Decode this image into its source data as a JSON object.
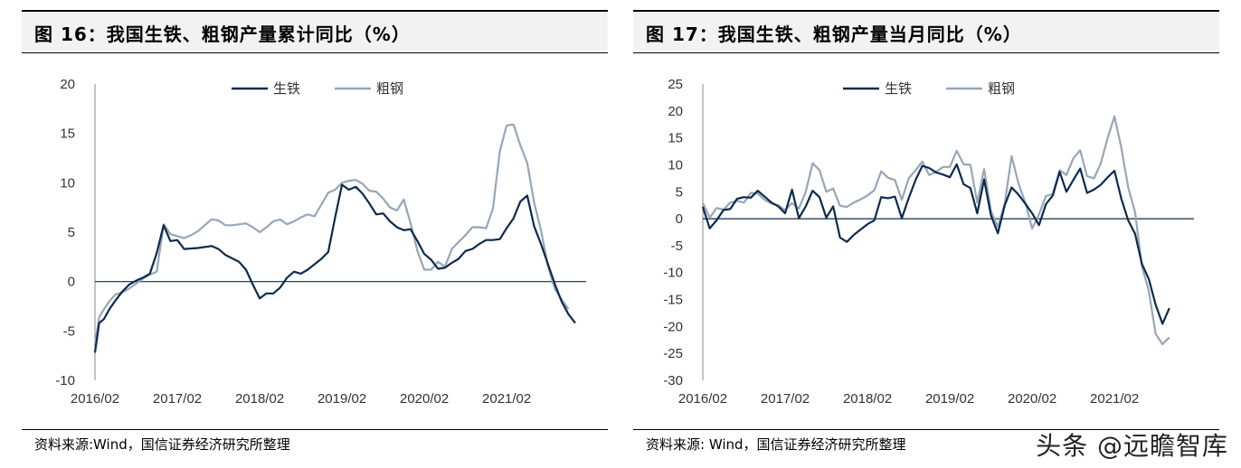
{
  "charts": [
    {
      "title": "图 16：我国生铁、粗钢产量累计同比（%）",
      "source": "资料来源:Wind，国信证券经济研究所整理"
    },
    {
      "title": "图 17：我国生铁、粗钢产量当月同比（%）",
      "source": "资料来源: Wind，国信证券经济研究所整理"
    }
  ],
  "watermark": "头条 @远瞻智库",
  "colors": {
    "pig_iron": "#0d2a4f",
    "crude_steel": "#97a6b8",
    "axis": "#0d2a4f"
  },
  "chart_data": [
    {
      "type": "line",
      "title": "图 16：我国生铁、粗钢产量累计同比（%）",
      "x_tick_labels": [
        "2016/02",
        "2017/02",
        "2018/02",
        "2019/02",
        "2020/02",
        "2021/02"
      ],
      "ylim": [
        -10,
        20
      ],
      "yticks": [
        -10,
        -5,
        0,
        5,
        10,
        15,
        20
      ],
      "legend": "top-center",
      "series": [
        {
          "name": "生铁",
          "points": [
            [
              0,
              -7.2
            ],
            [
              0.6,
              -4.2
            ],
            [
              1.3,
              -3.8
            ],
            [
              2.1,
              -2.8
            ],
            [
              3,
              -1.9
            ],
            [
              4,
              -1.0
            ],
            [
              5,
              -0.3
            ],
            [
              6,
              0.1
            ],
            [
              7,
              0.4
            ],
            [
              8,
              0.8
            ],
            [
              9,
              2.9
            ],
            [
              10,
              5.7
            ],
            [
              11,
              4.1
            ],
            [
              12,
              4.2
            ],
            [
              13,
              3.3
            ],
            [
              15,
              3.4
            ],
            [
              17,
              3.6
            ],
            [
              18,
              3.3
            ],
            [
              19,
              2.7
            ],
            [
              21,
              2.0
            ],
            [
              22,
              1.2
            ],
            [
              23,
              -0.3
            ],
            [
              24,
              -1.7
            ],
            [
              25,
              -1.2
            ],
            [
              26,
              -1.2
            ],
            [
              27,
              -0.6
            ],
            [
              28,
              0.4
            ],
            [
              29,
              1.0
            ],
            [
              30,
              0.8
            ],
            [
              31,
              1.2
            ],
            [
              33,
              2.3
            ],
            [
              34,
              3.0
            ],
            [
              35,
              6.5
            ],
            [
              36,
              9.8
            ],
            [
              37,
              9.3
            ],
            [
              38,
              9.6
            ],
            [
              39,
              8.9
            ],
            [
              40,
              7.9
            ],
            [
              41,
              6.8
            ],
            [
              42,
              6.9
            ],
            [
              43,
              6.1
            ],
            [
              44,
              5.5
            ],
            [
              45,
              5.2
            ],
            [
              46,
              5.3
            ],
            [
              47,
              4.1
            ],
            [
              48,
              2.8
            ],
            [
              49,
              2.2
            ],
            [
              50,
              1.3
            ],
            [
              51,
              1.4
            ],
            [
              52,
              1.9
            ],
            [
              53,
              2.3
            ],
            [
              54,
              3.1
            ],
            [
              55,
              3.3
            ],
            [
              56,
              3.8
            ],
            [
              57,
              4.2
            ],
            [
              58,
              4.2
            ],
            [
              59,
              4.3
            ],
            [
              60,
              5.4
            ],
            [
              61,
              6.4
            ],
            [
              62,
              8.1
            ],
            [
              63,
              8.7
            ],
            [
              64,
              5.6
            ],
            [
              65,
              3.8
            ],
            [
              66,
              1.8
            ],
            [
              67,
              -0.2
            ],
            [
              68,
              -2.0
            ],
            [
              69,
              -3.3
            ],
            [
              70,
              -4.2
            ]
          ]
        },
        {
          "name": "粗钢",
          "points": [
            [
              0,
              -6.5
            ],
            [
              0.6,
              -3.6
            ],
            [
              1.3,
              -2.8
            ],
            [
              2.1,
              -2.0
            ],
            [
              3,
              -1.3
            ],
            [
              4,
              -1.1
            ],
            [
              5,
              -0.7
            ],
            [
              6,
              -0.2
            ],
            [
              7,
              0.3
            ],
            [
              8,
              0.7
            ],
            [
              9,
              1.0
            ],
            [
              10,
              5.8
            ],
            [
              11,
              4.8
            ],
            [
              12,
              4.6
            ],
            [
              13,
              4.4
            ],
            [
              14,
              4.7
            ],
            [
              15,
              5.1
            ],
            [
              16,
              5.7
            ],
            [
              17,
              6.3
            ],
            [
              18,
              6.2
            ],
            [
              19,
              5.7
            ],
            [
              20,
              5.7
            ],
            [
              21,
              5.8
            ],
            [
              22,
              5.9
            ],
            [
              23,
              5.5
            ],
            [
              24,
              5.0
            ],
            [
              25,
              5.5
            ],
            [
              26,
              6.1
            ],
            [
              27,
              6.3
            ],
            [
              28,
              5.8
            ],
            [
              29,
              6.1
            ],
            [
              30,
              6.5
            ],
            [
              31,
              6.8
            ],
            [
              32,
              6.6
            ],
            [
              33,
              7.8
            ],
            [
              34,
              9.0
            ],
            [
              35,
              9.3
            ],
            [
              36,
              10.0
            ],
            [
              37,
              10.2
            ],
            [
              38,
              10.3
            ],
            [
              39,
              9.9
            ],
            [
              40,
              9.2
            ],
            [
              41,
              9.1
            ],
            [
              42,
              8.4
            ],
            [
              43,
              7.5
            ],
            [
              44,
              7.2
            ],
            [
              45,
              8.3
            ],
            [
              46,
              5.9
            ],
            [
              47,
              3.1
            ],
            [
              48,
              1.2
            ],
            [
              49,
              1.2
            ],
            [
              50,
              2.0
            ],
            [
              51,
              1.5
            ],
            [
              52,
              3.3
            ],
            [
              53,
              4.0
            ],
            [
              54,
              4.7
            ],
            [
              55,
              5.5
            ],
            [
              56,
              5.5
            ],
            [
              57,
              5.4
            ],
            [
              58,
              7.4
            ],
            [
              59,
              13.2
            ],
            [
              60,
              15.8
            ],
            [
              61,
              15.9
            ],
            [
              62,
              13.8
            ],
            [
              63,
              12.0
            ],
            [
              64,
              8.0
            ],
            [
              65,
              5.2
            ],
            [
              66,
              1.6
            ],
            [
              67,
              -0.7
            ],
            [
              68,
              -1.8
            ],
            [
              69,
              -2.8
            ]
          ]
        }
      ]
    },
    {
      "type": "line",
      "title": "图 17：我国生铁、粗钢产量当月同比（%）",
      "x_tick_labels": [
        "2016/02",
        "2017/02",
        "2018/02",
        "2019/02",
        "2020/02",
        "2021/02"
      ],
      "ylim": [
        -30,
        25
      ],
      "yticks": [
        -30,
        -25,
        -20,
        -15,
        -10,
        -5,
        0,
        5,
        10,
        15,
        20,
        25
      ],
      "legend": "top-center",
      "series": [
        {
          "name": "生铁",
          "points": [
            [
              0,
              2.2
            ],
            [
              1,
              -1.8
            ],
            [
              2,
              -0.3
            ],
            [
              3,
              1.6
            ],
            [
              4,
              1.8
            ],
            [
              5,
              3.7
            ],
            [
              6,
              4.0
            ],
            [
              7,
              3.9
            ],
            [
              8,
              5.2
            ],
            [
              9,
              4.1
            ],
            [
              10,
              3.0
            ],
            [
              11,
              2.3
            ],
            [
              12,
              1.0
            ],
            [
              13,
              5.4
            ],
            [
              14,
              0.1
            ],
            [
              15,
              2.3
            ],
            [
              16,
              5.2
            ],
            [
              17,
              4.0
            ],
            [
              18,
              0.2
            ],
            [
              19,
              2.3
            ],
            [
              20,
              -3.5
            ],
            [
              21,
              -4.3
            ],
            [
              22,
              -3.0
            ],
            [
              23,
              -2.0
            ],
            [
              24,
              -1.0
            ],
            [
              25,
              -0.3
            ],
            [
              26,
              4.0
            ],
            [
              27,
              3.8
            ],
            [
              28,
              4.1
            ],
            [
              29,
              0.1
            ],
            [
              30,
              3.8
            ],
            [
              31,
              7.2
            ],
            [
              32,
              9.8
            ],
            [
              33,
              9.4
            ],
            [
              34,
              8.6
            ],
            [
              35,
              8.2
            ],
            [
              36,
              7.7
            ],
            [
              37,
              10.1
            ],
            [
              38,
              6.4
            ],
            [
              39,
              5.7
            ],
            [
              40,
              1.0
            ],
            [
              41,
              7.3
            ],
            [
              42,
              0.6
            ],
            [
              43,
              -2.7
            ],
            [
              44,
              2.5
            ],
            [
              45,
              5.8
            ],
            [
              46,
              4.5
            ],
            [
              47,
              2.8
            ],
            [
              48,
              1.0
            ],
            [
              49,
              -1.2
            ],
            [
              50,
              2.7
            ],
            [
              51,
              4.3
            ],
            [
              52,
              8.7
            ],
            [
              53,
              5.0
            ],
            [
              54,
              7.2
            ],
            [
              55,
              9.3
            ],
            [
              56,
              4.8
            ],
            [
              57,
              5.4
            ],
            [
              58,
              6.3
            ],
            [
              59,
              7.7
            ],
            [
              60,
              8.9
            ],
            [
              61,
              3.7
            ],
            [
              62,
              -0.3
            ],
            [
              63,
              -2.8
            ],
            [
              64,
              -8.4
            ],
            [
              65,
              -11.2
            ],
            [
              66,
              -16.0
            ],
            [
              67,
              -19.5
            ],
            [
              68,
              -16.6
            ]
          ]
        },
        {
          "name": "粗钢",
          "points": [
            [
              0,
              2.9
            ],
            [
              1,
              0.2
            ],
            [
              2,
              2.0
            ],
            [
              3,
              1.7
            ],
            [
              4,
              3.0
            ],
            [
              5,
              3.3
            ],
            [
              6,
              3.0
            ],
            [
              7,
              4.8
            ],
            [
              8,
              4.7
            ],
            [
              9,
              3.5
            ],
            [
              10,
              2.8
            ],
            [
              11,
              2.5
            ],
            [
              12,
              1.6
            ],
            [
              13,
              2.9
            ],
            [
              14,
              1.9
            ],
            [
              15,
              5.0
            ],
            [
              16,
              10.3
            ],
            [
              17,
              9.0
            ],
            [
              18,
              5.0
            ],
            [
              19,
              5.6
            ],
            [
              20,
              2.4
            ],
            [
              21,
              2.2
            ],
            [
              22,
              3.0
            ],
            [
              23,
              3.6
            ],
            [
              24,
              4.3
            ],
            [
              25,
              5.3
            ],
            [
              26,
              8.8
            ],
            [
              27,
              7.6
            ],
            [
              28,
              7.2
            ],
            [
              29,
              3.5
            ],
            [
              30,
              7.5
            ],
            [
              31,
              9.0
            ],
            [
              32,
              10.6
            ],
            [
              33,
              8.1
            ],
            [
              34,
              8.7
            ],
            [
              35,
              9.6
            ],
            [
              36,
              9.6
            ],
            [
              37,
              12.6
            ],
            [
              38,
              10.1
            ],
            [
              39,
              10.0
            ],
            [
              40,
              3.0
            ],
            [
              41,
              9.2
            ],
            [
              42,
              1.4
            ],
            [
              43,
              -1.5
            ],
            [
              44,
              2.8
            ],
            [
              45,
              11.6
            ],
            [
              46,
              6.6
            ],
            [
              47,
              3.0
            ],
            [
              48,
              -1.8
            ],
            [
              49,
              0.8
            ],
            [
              50,
              4.2
            ],
            [
              51,
              4.6
            ],
            [
              52,
              9.0
            ],
            [
              53,
              8.1
            ],
            [
              54,
              11.2
            ],
            [
              55,
              12.7
            ],
            [
              56,
              7.9
            ],
            [
              57,
              7.5
            ],
            [
              58,
              10.3
            ],
            [
              59,
              15.0
            ],
            [
              60,
              19.0
            ],
            [
              61,
              13.2
            ],
            [
              62,
              5.8
            ],
            [
              63,
              1.2
            ],
            [
              64,
              -8.9
            ],
            [
              65,
              -13.4
            ],
            [
              66,
              -21.4
            ],
            [
              67,
              -23.3
            ],
            [
              68,
              -22.0
            ]
          ]
        }
      ]
    }
  ]
}
